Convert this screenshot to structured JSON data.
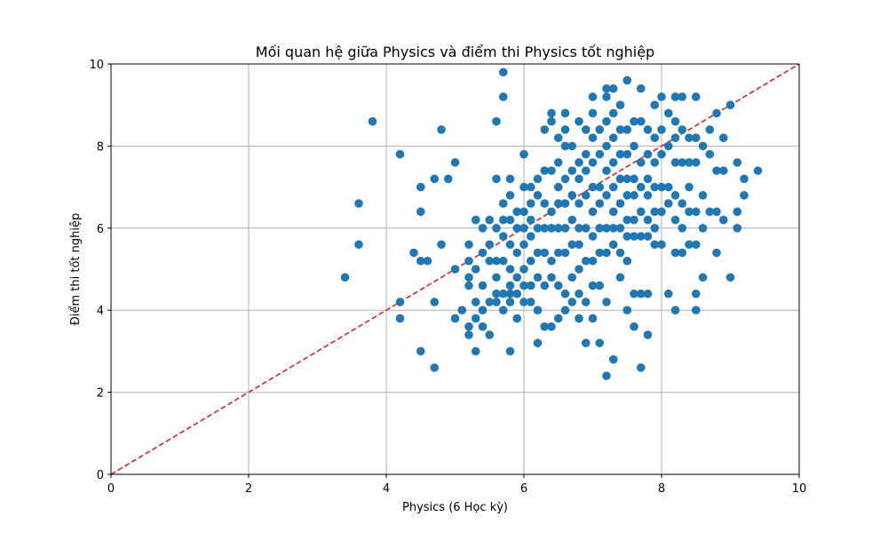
{
  "chart_data": {
    "type": "scatter",
    "title": "Mối quan hệ giữa Physics và điểm thi Physics tốt nghiệp",
    "xlabel": "Physics (6 Học kỳ)",
    "ylabel": "Điểm thi tốt nghiệp",
    "xlim": [
      0,
      10
    ],
    "ylim": [
      0,
      10
    ],
    "xticks": [
      "0",
      "2",
      "4",
      "6",
      "8",
      "10"
    ],
    "yticks": [
      "0",
      "2",
      "4",
      "6",
      "8",
      "10"
    ],
    "grid": true,
    "colors": {
      "points": "#1f77b4",
      "reference_line": "#d62728",
      "grid": "#b0b0b0"
    },
    "reference_line": {
      "style": "dashed",
      "x": [
        0,
        10
      ],
      "y": [
        0,
        10
      ]
    },
    "series": [
      {
        "x": [
          3.4,
          3.6,
          3.6,
          3.8,
          4.2,
          4.2,
          4.2,
          4.4,
          4.5,
          4.5,
          4.5,
          4.5,
          4.6,
          4.7,
          4.7,
          4.7,
          4.8,
          4.8,
          4.9,
          5.0,
          5.0,
          5.0,
          5.1,
          5.2,
          5.2,
          5.2,
          5.2,
          5.2,
          5.2,
          5.3,
          5.3,
          5.3,
          5.3,
          5.3,
          5.4,
          5.4,
          5.4,
          5.4,
          5.4,
          5.5,
          5.5,
          5.5,
          5.5,
          5.5,
          5.6,
          5.6,
          5.6,
          5.6,
          5.6,
          5.6,
          5.6,
          5.7,
          5.7,
          5.7,
          5.7,
          5.7,
          5.7,
          5.7,
          5.7,
          5.8,
          5.8,
          5.8,
          5.8,
          5.8,
          5.8,
          5.8,
          5.8,
          5.8,
          5.9,
          5.9,
          5.9,
          5.9,
          5.9,
          5.9,
          6.0,
          6.0,
          6.0,
          6.0,
          6.0,
          6.0,
          6.0,
          6.0,
          6.1,
          6.1,
          6.1,
          6.1,
          6.1,
          6.1,
          6.1,
          6.2,
          6.2,
          6.2,
          6.2,
          6.2,
          6.2,
          6.2,
          6.3,
          6.3,
          6.3,
          6.3,
          6.3,
          6.3,
          6.3,
          6.4,
          6.4,
          6.4,
          6.4,
          6.4,
          6.4,
          6.4,
          6.4,
          6.5,
          6.5,
          6.5,
          6.5,
          6.5,
          6.5,
          6.5,
          6.5,
          6.6,
          6.6,
          6.6,
          6.6,
          6.6,
          6.6,
          6.6,
          6.6,
          6.6,
          6.7,
          6.7,
          6.7,
          6.7,
          6.7,
          6.7,
          6.7,
          6.8,
          6.8,
          6.8,
          6.8,
          6.8,
          6.8,
          6.8,
          6.8,
          6.8,
          6.9,
          6.9,
          6.9,
          6.9,
          6.9,
          6.9,
          6.9,
          6.9,
          7.0,
          7.0,
          7.0,
          7.0,
          7.0,
          7.0,
          7.0,
          7.0,
          7.0,
          7.0,
          7.1,
          7.1,
          7.1,
          7.1,
          7.1,
          7.1,
          7.1,
          7.1,
          7.2,
          7.2,
          7.2,
          7.2,
          7.2,
          7.2,
          7.2,
          7.2,
          7.2,
          7.2,
          7.3,
          7.3,
          7.3,
          7.3,
          7.3,
          7.3,
          7.3,
          7.3,
          7.3,
          7.4,
          7.4,
          7.4,
          7.4,
          7.4,
          7.4,
          7.4,
          7.4,
          7.5,
          7.5,
          7.5,
          7.5,
          7.5,
          7.5,
          7.5,
          7.5,
          7.5,
          7.6,
          7.6,
          7.6,
          7.6,
          7.6,
          7.6,
          7.6,
          7.6,
          7.7,
          7.7,
          7.7,
          7.7,
          7.7,
          7.7,
          7.7,
          7.7,
          7.8,
          7.8,
          7.8,
          7.8,
          7.8,
          7.8,
          7.8,
          7.8,
          7.9,
          7.9,
          7.9,
          7.9,
          7.9,
          7.9,
          7.9,
          8.0,
          8.0,
          8.0,
          8.0,
          8.0,
          8.0,
          8.1,
          8.1,
          8.1,
          8.1,
          8.1,
          8.2,
          8.2,
          8.2,
          8.2,
          8.2,
          8.2,
          8.2,
          8.2,
          8.3,
          8.3,
          8.3,
          8.3,
          8.3,
          8.3,
          8.4,
          8.4,
          8.4,
          8.4,
          8.4,
          8.5,
          8.5,
          8.5,
          8.5,
          8.5,
          8.5,
          8.5,
          8.6,
          8.6,
          8.6,
          8.6,
          8.7,
          8.7,
          8.7,
          8.8,
          8.8,
          8.8,
          8.8,
          8.9,
          8.9,
          8.9,
          9.0,
          9.0,
          9.1,
          9.1,
          9.1,
          9.2,
          9.2,
          9.4
        ],
        "y": [
          4.8,
          5.6,
          6.6,
          8.6,
          7.8,
          4.2,
          3.8,
          5.4,
          7.0,
          6.4,
          5.2,
          3.0,
          5.2,
          7.2,
          4.2,
          2.6,
          8.4,
          5.6,
          7.2,
          5.0,
          3.8,
          7.6,
          4.0,
          5.6,
          5.2,
          4.8,
          3.6,
          3.4,
          4.6,
          6.2,
          5.0,
          4.2,
          3.8,
          3.0,
          6.0,
          5.4,
          4.6,
          4.0,
          3.6,
          6.2,
          5.6,
          5.2,
          4.2,
          3.4,
          8.6,
          7.2,
          6.0,
          5.2,
          4.8,
          4.4,
          4.2,
          9.8,
          9.2,
          6.6,
          6.2,
          5.8,
          5.2,
          4.4,
          4.0,
          7.2,
          6.8,
          6.2,
          5.6,
          5.0,
          4.6,
          4.4,
          4.2,
          3.0,
          6.4,
          6.0,
          5.4,
          4.8,
          4.4,
          3.8,
          7.8,
          7.0,
          6.4,
          6.0,
          5.6,
          5.0,
          4.6,
          4.2,
          7.0,
          6.6,
          6.2,
          5.8,
          5.2,
          4.6,
          4.2,
          7.2,
          6.8,
          6.0,
          5.4,
          4.8,
          4.0,
          3.2,
          8.4,
          7.4,
          6.6,
          6.0,
          5.4,
          4.6,
          3.6,
          8.8,
          8.6,
          7.4,
          6.4,
          6.0,
          5.2,
          4.8,
          3.6,
          8.2,
          7.6,
          7.0,
          6.6,
          6.0,
          5.4,
          4.6,
          3.8,
          8.8,
          8.4,
          8.0,
          7.2,
          6.6,
          6.0,
          5.4,
          4.4,
          4.0,
          8.0,
          7.4,
          6.8,
          6.2,
          5.6,
          4.8,
          4.2,
          8.6,
          7.6,
          7.2,
          6.6,
          6.0,
          5.6,
          5.0,
          4.4,
          3.8,
          8.4,
          7.8,
          7.4,
          6.8,
          6.0,
          5.2,
          4.2,
          3.2,
          9.2,
          8.8,
          8.2,
          7.6,
          7.0,
          6.4,
          5.8,
          5.2,
          4.6,
          3.8,
          8.4,
          7.8,
          7.0,
          6.6,
          6.0,
          5.4,
          4.6,
          3.2,
          9.4,
          9.2,
          8.6,
          8.0,
          7.4,
          6.8,
          6.0,
          5.4,
          4.2,
          2.4,
          9.4,
          8.8,
          8.2,
          7.6,
          7.0,
          6.4,
          6.0,
          5.6,
          2.8,
          9.0,
          8.4,
          7.8,
          7.2,
          6.6,
          6.0,
          5.4,
          4.8,
          9.6,
          8.4,
          7.8,
          7.2,
          6.8,
          6.2,
          5.8,
          5.2,
          4.0,
          8.6,
          8.0,
          7.2,
          6.8,
          6.2,
          5.8,
          4.4,
          3.6,
          9.4,
          8.6,
          7.6,
          7.0,
          6.4,
          5.8,
          4.4,
          2.6,
          8.4,
          7.8,
          7.2,
          6.8,
          6.2,
          5.8,
          4.4,
          3.4,
          9.0,
          8.2,
          7.6,
          7.0,
          6.4,
          6.0,
          5.6,
          9.2,
          8.4,
          7.8,
          7.0,
          6.4,
          5.6,
          8.8,
          8.0,
          7.0,
          6.6,
          4.4,
          9.2,
          8.6,
          8.2,
          7.6,
          6.8,
          6.2,
          5.4,
          4.0,
          9.2,
          8.4,
          7.6,
          6.6,
          6.0,
          5.4,
          8.2,
          7.6,
          7.0,
          6.4,
          5.6,
          9.2,
          8.2,
          7.6,
          6.4,
          5.6,
          4.4,
          4.0,
          8.0,
          6.8,
          6.0,
          4.8,
          8.4,
          7.8,
          6.4,
          8.8,
          7.4,
          6.4,
          5.4,
          8.2,
          7.4,
          6.2,
          9.0,
          4.8,
          7.6,
          6.4,
          6.0,
          7.2,
          6.8,
          7.4
        ]
      }
    ]
  }
}
